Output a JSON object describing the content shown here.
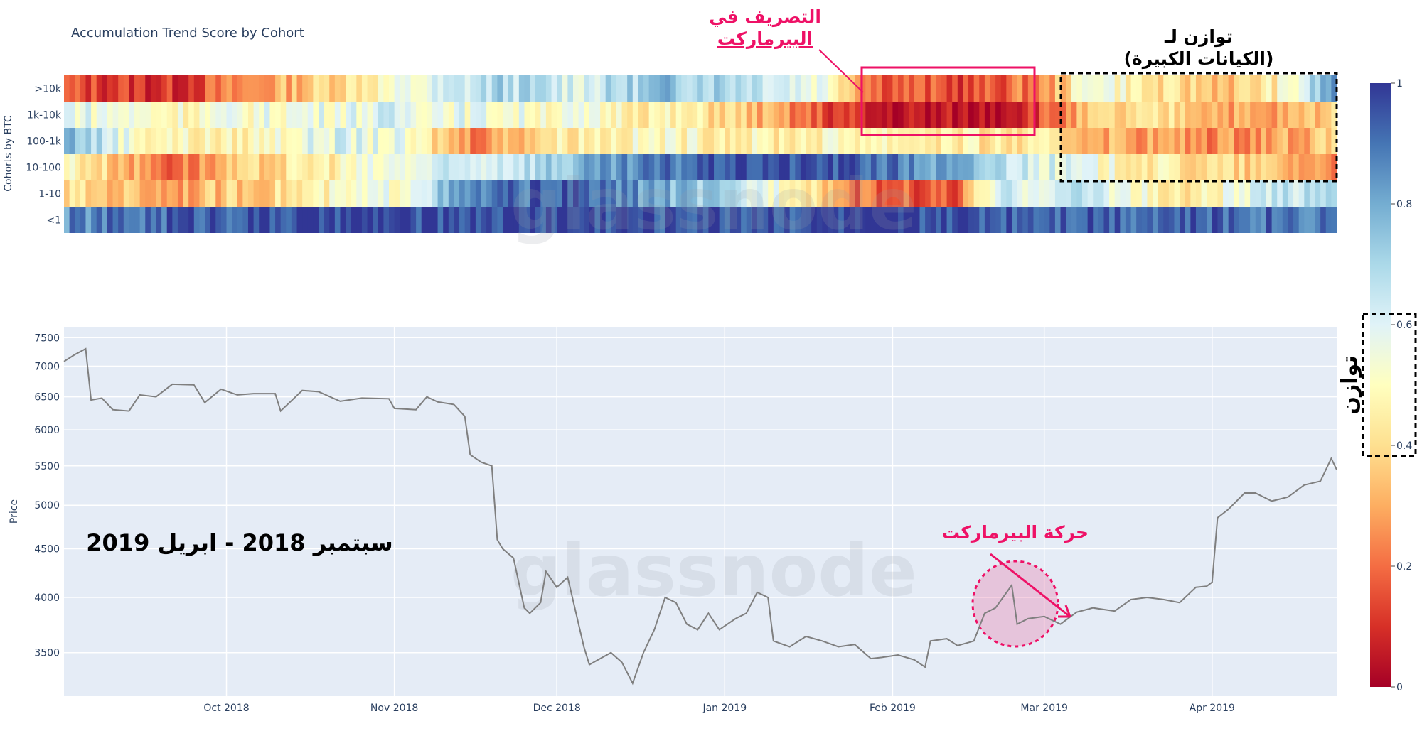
{
  "chart_data": [
    {
      "type": "heatmap",
      "title": "Accumulation Trend Score by Cohort",
      "ylabel": "Cohorts by BTC",
      "rows": [
        ">10k",
        "1k-10k",
        "100-1k",
        "10-100",
        "1-10",
        "<1"
      ],
      "time_range": [
        "2018-09-01",
        "2019-04-24"
      ],
      "colorscale": {
        "min": 0,
        "max": 1,
        "ticks": [
          "0",
          "0.2",
          "0.4",
          "0.6",
          "0.8",
          "1"
        ],
        "stops": [
          {
            "v": 0.0,
            "c": "#a50026"
          },
          {
            "v": 0.1,
            "c": "#d73027"
          },
          {
            "v": 0.2,
            "c": "#f46d43"
          },
          {
            "v": 0.3,
            "c": "#fdae61"
          },
          {
            "v": 0.4,
            "c": "#fee090"
          },
          {
            "v": 0.5,
            "c": "#ffffbf"
          },
          {
            "v": 0.6,
            "c": "#e0f3f8"
          },
          {
            "v": 0.7,
            "c": "#abd9e9"
          },
          {
            "v": 0.8,
            "c": "#74add1"
          },
          {
            "v": 0.9,
            "c": "#4575b4"
          },
          {
            "v": 1.0,
            "c": "#313695"
          }
        ]
      },
      "segments": [
        {
          "row": ">10k",
          "points": [
            [
              "2018-09-01",
              0.15
            ],
            [
              "2018-09-20",
              0.1
            ],
            [
              "2018-10-10",
              0.3
            ],
            [
              "2018-10-25",
              0.45
            ],
            [
              "2018-11-05",
              0.55
            ],
            [
              "2018-11-20",
              0.7
            ],
            [
              "2018-12-05",
              0.62
            ],
            [
              "2018-12-20",
              0.75
            ],
            [
              "2019-01-05",
              0.7
            ],
            [
              "2019-01-20",
              0.55
            ],
            [
              "2019-01-28",
              0.2
            ],
            [
              "2019-02-15",
              0.13
            ],
            [
              "2019-03-01",
              0.25
            ],
            [
              "2019-03-10",
              0.6
            ],
            [
              "2019-03-20",
              0.4
            ],
            [
              "2019-04-05",
              0.35
            ],
            [
              "2019-04-15",
              0.5
            ],
            [
              "2019-04-24",
              0.9
            ]
          ]
        },
        {
          "row": "1k-10k",
          "points": [
            [
              "2018-09-01",
              0.6
            ],
            [
              "2018-09-20",
              0.5
            ],
            [
              "2018-10-10",
              0.55
            ],
            [
              "2018-11-01",
              0.6
            ],
            [
              "2018-11-20",
              0.55
            ],
            [
              "2018-12-10",
              0.5
            ],
            [
              "2019-01-01",
              0.4
            ],
            [
              "2019-01-15",
              0.2
            ],
            [
              "2019-01-28",
              0.05
            ],
            [
              "2019-02-15",
              0.03
            ],
            [
              "2019-02-28",
              0.15
            ],
            [
              "2019-03-10",
              0.35
            ],
            [
              "2019-03-25",
              0.4
            ],
            [
              "2019-04-10",
              0.25
            ],
            [
              "2019-04-24",
              0.4
            ]
          ]
        },
        {
          "row": "100-1k",
          "points": [
            [
              "2018-09-01",
              0.8
            ],
            [
              "2018-09-15",
              0.5
            ],
            [
              "2018-10-01",
              0.45
            ],
            [
              "2018-10-20",
              0.6
            ],
            [
              "2018-11-01",
              0.55
            ],
            [
              "2018-11-15",
              0.25
            ],
            [
              "2018-12-01",
              0.45
            ],
            [
              "2018-12-20",
              0.5
            ],
            [
              "2019-01-10",
              0.45
            ],
            [
              "2019-01-25",
              0.5
            ],
            [
              "2019-02-10",
              0.45
            ],
            [
              "2019-03-01",
              0.4
            ],
            [
              "2019-03-15",
              0.3
            ],
            [
              "2019-04-01",
              0.25
            ],
            [
              "2019-04-24",
              0.35
            ]
          ]
        },
        {
          "row": "10-100",
          "points": [
            [
              "2018-09-01",
              0.5
            ],
            [
              "2018-09-20",
              0.2
            ],
            [
              "2018-10-10",
              0.4
            ],
            [
              "2018-11-01",
              0.55
            ],
            [
              "2018-11-20",
              0.65
            ],
            [
              "2018-12-10",
              0.8
            ],
            [
              "2019-01-01",
              0.97
            ],
            [
              "2019-01-25",
              0.95
            ],
            [
              "2019-02-15",
              0.75
            ],
            [
              "2019-03-01",
              0.6
            ],
            [
              "2019-03-20",
              0.45
            ],
            [
              "2019-04-10",
              0.35
            ],
            [
              "2019-04-24",
              0.25
            ]
          ]
        },
        {
          "row": "1-10",
          "points": [
            [
              "2018-09-01",
              0.4
            ],
            [
              "2018-09-20",
              0.3
            ],
            [
              "2018-10-10",
              0.4
            ],
            [
              "2018-11-01",
              0.55
            ],
            [
              "2018-11-15",
              0.85
            ],
            [
              "2018-12-01",
              0.95
            ],
            [
              "2018-12-20",
              0.8
            ],
            [
              "2019-01-15",
              0.5
            ],
            [
              "2019-01-25",
              0.2
            ],
            [
              "2019-02-12",
              0.15
            ],
            [
              "2019-02-20",
              0.6
            ],
            [
              "2019-03-10",
              0.65
            ],
            [
              "2019-03-25",
              0.4
            ],
            [
              "2019-04-10",
              0.6
            ],
            [
              "2019-04-24",
              0.75
            ]
          ]
        },
        {
          "row": "<1",
          "points": [
            [
              "2018-09-01",
              0.85
            ],
            [
              "2018-09-25",
              0.95
            ],
            [
              "2018-10-20",
              0.97
            ],
            [
              "2018-11-20",
              0.98
            ],
            [
              "2018-12-20",
              0.96
            ],
            [
              "2019-01-20",
              0.97
            ],
            [
              "2019-02-20",
              0.96
            ],
            [
              "2019-03-20",
              0.94
            ],
            [
              "2019-04-24",
              0.9
            ]
          ]
        }
      ]
    },
    {
      "type": "line",
      "ylabel": "Price",
      "x_ticks": [
        {
          "date": "2018-10-01",
          "label": "Oct 2018"
        },
        {
          "date": "2018-11-01",
          "label": "Nov 2018"
        },
        {
          "date": "2018-12-01",
          "label": "Dec 2018"
        },
        {
          "date": "2019-01-01",
          "label": "Jan 2019"
        },
        {
          "date": "2019-02-01",
          "label": "Feb 2019"
        },
        {
          "date": "2019-03-01",
          "label": "Mar 2019"
        },
        {
          "date": "2019-04-01",
          "label": "Apr 2019"
        }
      ],
      "y_ticks": [
        3500,
        4000,
        4500,
        5000,
        5500,
        6000,
        6500,
        7000,
        7500
      ],
      "y_scale": "log",
      "ylim": [
        3150,
        7700
      ],
      "xlim": [
        "2018-09-01",
        "2019-04-24"
      ],
      "grid": true,
      "series": [
        {
          "values": [
            [
              "2018-09-01",
              7080
            ],
            [
              "2018-09-03",
              7200
            ],
            [
              "2018-09-05",
              7300
            ],
            [
              "2018-09-06",
              6450
            ],
            [
              "2018-09-08",
              6480
            ],
            [
              "2018-09-10",
              6300
            ],
            [
              "2018-09-13",
              6280
            ],
            [
              "2018-09-15",
              6530
            ],
            [
              "2018-09-18",
              6500
            ],
            [
              "2018-09-21",
              6700
            ],
            [
              "2018-09-25",
              6690
            ],
            [
              "2018-09-27",
              6410
            ],
            [
              "2018-09-30",
              6620
            ],
            [
              "2018-10-03",
              6530
            ],
            [
              "2018-10-06",
              6550
            ],
            [
              "2018-10-10",
              6550
            ],
            [
              "2018-10-11",
              6280
            ],
            [
              "2018-10-15",
              6600
            ],
            [
              "2018-10-18",
              6580
            ],
            [
              "2018-10-22",
              6430
            ],
            [
              "2018-10-26",
              6480
            ],
            [
              "2018-10-31",
              6470
            ],
            [
              "2018-11-01",
              6320
            ],
            [
              "2018-11-05",
              6300
            ],
            [
              "2018-11-07",
              6500
            ],
            [
              "2018-11-09",
              6420
            ],
            [
              "2018-11-12",
              6380
            ],
            [
              "2018-11-14",
              6200
            ],
            [
              "2018-11-15",
              5650
            ],
            [
              "2018-11-17",
              5550
            ],
            [
              "2018-11-19",
              5500
            ],
            [
              "2018-11-20",
              4600
            ],
            [
              "2018-11-21",
              4500
            ],
            [
              "2018-11-23",
              4400
            ],
            [
              "2018-11-25",
              3900
            ],
            [
              "2018-11-26",
              3850
            ],
            [
              "2018-11-28",
              3950
            ],
            [
              "2018-11-29",
              4260
            ],
            [
              "2018-12-01",
              4100
            ],
            [
              "2018-12-03",
              4200
            ],
            [
              "2018-12-06",
              3550
            ],
            [
              "2018-12-07",
              3400
            ],
            [
              "2018-12-09",
              3450
            ],
            [
              "2018-12-11",
              3500
            ],
            [
              "2018-12-13",
              3420
            ],
            [
              "2018-12-15",
              3250
            ],
            [
              "2018-12-17",
              3500
            ],
            [
              "2018-12-19",
              3700
            ],
            [
              "2018-12-21",
              4000
            ],
            [
              "2018-12-23",
              3950
            ],
            [
              "2018-12-25",
              3750
            ],
            [
              "2018-12-27",
              3700
            ],
            [
              "2018-12-29",
              3850
            ],
            [
              "2018-12-31",
              3700
            ],
            [
              "2019-01-03",
              3800
            ],
            [
              "2019-01-05",
              3850
            ],
            [
              "2019-01-07",
              4050
            ],
            [
              "2019-01-09",
              4000
            ],
            [
              "2019-01-10",
              3600
            ],
            [
              "2019-01-13",
              3550
            ],
            [
              "2019-01-16",
              3640
            ],
            [
              "2019-01-19",
              3600
            ],
            [
              "2019-01-22",
              3550
            ],
            [
              "2019-01-25",
              3570
            ],
            [
              "2019-01-28",
              3450
            ],
            [
              "2019-01-30",
              3460
            ],
            [
              "2019-02-02",
              3480
            ],
            [
              "2019-02-05",
              3440
            ],
            [
              "2019-02-07",
              3380
            ],
            [
              "2019-02-08",
              3600
            ],
            [
              "2019-02-11",
              3620
            ],
            [
              "2019-02-13",
              3560
            ],
            [
              "2019-02-16",
              3600
            ],
            [
              "2019-02-18",
              3850
            ],
            [
              "2019-02-20",
              3900
            ],
            [
              "2019-02-23",
              4120
            ],
            [
              "2019-02-24",
              3750
            ],
            [
              "2019-02-26",
              3800
            ],
            [
              "2019-03-01",
              3820
            ],
            [
              "2019-03-04",
              3750
            ],
            [
              "2019-03-07",
              3860
            ],
            [
              "2019-03-10",
              3900
            ],
            [
              "2019-03-14",
              3870
            ],
            [
              "2019-03-17",
              3980
            ],
            [
              "2019-03-20",
              4000
            ],
            [
              "2019-03-23",
              3980
            ],
            [
              "2019-03-26",
              3950
            ],
            [
              "2019-03-29",
              4100
            ],
            [
              "2019-03-31",
              4110
            ],
            [
              "2019-04-01",
              4150
            ],
            [
              "2019-04-02",
              4850
            ],
            [
              "2019-04-04",
              4950
            ],
            [
              "2019-04-07",
              5150
            ],
            [
              "2019-04-09",
              5150
            ],
            [
              "2019-04-12",
              5050
            ],
            [
              "2019-04-15",
              5100
            ],
            [
              "2019-04-18",
              5250
            ],
            [
              "2019-04-21",
              5300
            ],
            [
              "2019-04-23",
              5600
            ],
            [
              "2019-04-24",
              5450
            ]
          ]
        }
      ]
    }
  ],
  "watermark": "glassnode",
  "annotations": {
    "distribution_top": "التصريف في",
    "distribution_bottom": "البيرماركت",
    "balance_top": "توازن لـ",
    "balance_bottom": "(الكيانات الكبيرة)",
    "date_range": "سبتمبر 2018 - ابريل 2019",
    "bear_move": "حركة البيرماركت",
    "balance_label": "توازن"
  },
  "colors": {
    "accent_pink": "#ee1166",
    "line": "#7f7f7f",
    "plot_bg": "#e5ecf6"
  }
}
